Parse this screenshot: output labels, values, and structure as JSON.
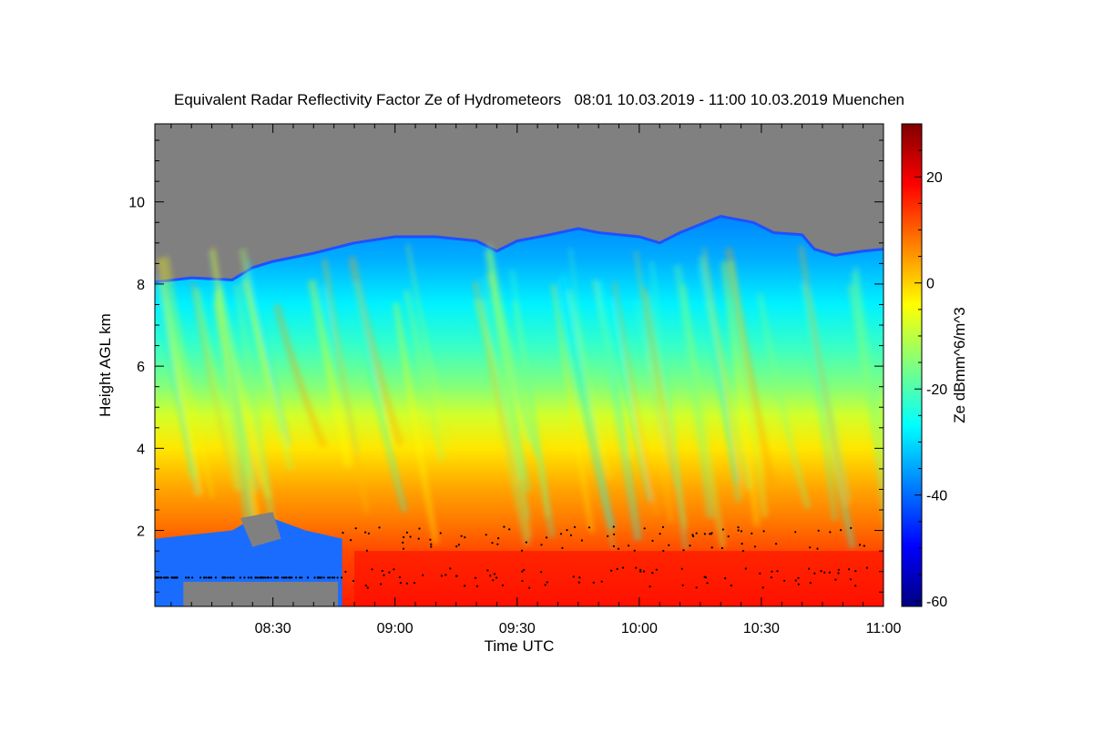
{
  "chart_data": {
    "type": "heatmap",
    "title": "Equivalent Radar Reflectivity Factor Ze of Hydrometeors   08:01 10.03.2019 - 11:00 10.03.2019 Muenchen",
    "xlabel": "Time UTC",
    "ylabel": "Height AGL km",
    "colorbar_label": "Ze dBmm^6/m^3",
    "x_range": [
      "08:01",
      "11:00"
    ],
    "y_range_km": [
      0.15,
      11.9
    ],
    "x_ticks": [
      "08:30",
      "09:00",
      "09:30",
      "10:00",
      "10:30",
      "11:00"
    ],
    "y_ticks": [
      "2",
      "4",
      "6",
      "8",
      "10"
    ],
    "colorbar_ticks": [
      "-60",
      "-40",
      "-20",
      "0",
      "20"
    ],
    "colorbar_range": [
      -61,
      30
    ],
    "no_signal_color": "#808080",
    "colormap": [
      "#00007f",
      "#0000ff",
      "#007fff",
      "#00ffff",
      "#7fff7f",
      "#ffff00",
      "#ff7f00",
      "#ff0000",
      "#7f0000"
    ],
    "cloud_top_km": [
      {
        "t": "08:01",
        "h": 8.05
      },
      {
        "t": "08:10",
        "h": 8.15
      },
      {
        "t": "08:20",
        "h": 8.1
      },
      {
        "t": "08:25",
        "h": 8.4
      },
      {
        "t": "08:30",
        "h": 8.55
      },
      {
        "t": "08:40",
        "h": 8.75
      },
      {
        "t": "08:50",
        "h": 9.0
      },
      {
        "t": "09:00",
        "h": 9.15
      },
      {
        "t": "09:10",
        "h": 9.15
      },
      {
        "t": "09:20",
        "h": 9.05
      },
      {
        "t": "09:25",
        "h": 8.8
      },
      {
        "t": "09:30",
        "h": 9.05
      },
      {
        "t": "09:38",
        "h": 9.2
      },
      {
        "t": "09:45",
        "h": 9.35
      },
      {
        "t": "09:50",
        "h": 9.25
      },
      {
        "t": "10:00",
        "h": 9.15
      },
      {
        "t": "10:05",
        "h": 9.0
      },
      {
        "t": "10:10",
        "h": 9.25
      },
      {
        "t": "10:20",
        "h": 9.65
      },
      {
        "t": "10:28",
        "h": 9.5
      },
      {
        "t": "10:33",
        "h": 9.25
      },
      {
        "t": "10:40",
        "h": 9.2
      },
      {
        "t": "10:43",
        "h": 8.85
      },
      {
        "t": "10:48",
        "h": 8.7
      },
      {
        "t": "10:55",
        "h": 8.8
      },
      {
        "t": "11:00",
        "h": 8.85
      }
    ],
    "melting_layer_km": 1.5
  }
}
